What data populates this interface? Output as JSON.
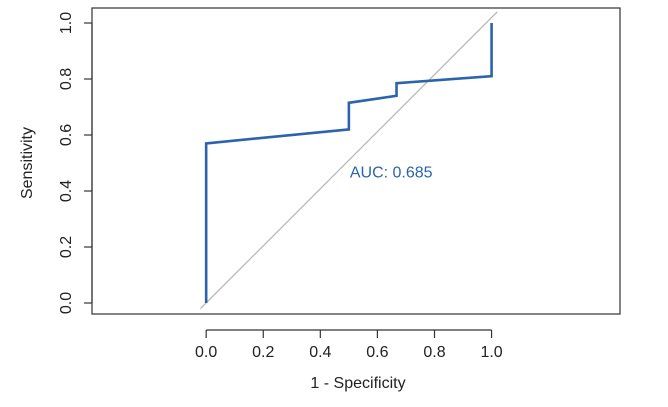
{
  "colors": {
    "roc_curve": "#2b63ad",
    "reference_line": "#b3b3b3",
    "axis": "#333333",
    "text": "#222222"
  },
  "chart_data": {
    "type": "line",
    "xlabel": "1 - Specificity",
    "ylabel": "Sensitivity",
    "xlim": [
      -0.4,
      1.45
    ],
    "ylim": [
      0.0,
      1.0
    ],
    "x_ticks": [
      0.0,
      0.2,
      0.4,
      0.6,
      0.8,
      1.0
    ],
    "x_tick_labels": [
      "0.0",
      "0.2",
      "0.4",
      "0.6",
      "0.8",
      "1.0"
    ],
    "y_ticks": [
      0.0,
      0.2,
      0.4,
      0.6,
      0.8,
      1.0
    ],
    "y_tick_labels": [
      "0.0",
      "0.2",
      "0.4",
      "0.6",
      "0.8",
      "1.0"
    ],
    "grid": false,
    "series": [
      {
        "type": "step-line",
        "x": [
          0.0,
          0.0,
          0.5,
          0.5,
          0.667,
          0.667,
          1.0,
          1.0
        ],
        "y": [
          0.0,
          0.57,
          0.62,
          0.715,
          0.74,
          0.785,
          0.81,
          1.0
        ]
      }
    ],
    "reference_line": {
      "x": [
        -0.02,
        1.02
      ],
      "y": [
        -0.02,
        1.04
      ]
    },
    "annotations": [
      {
        "text": "AUC: 0.685",
        "x": 0.5,
        "y": 0.47
      }
    ]
  }
}
